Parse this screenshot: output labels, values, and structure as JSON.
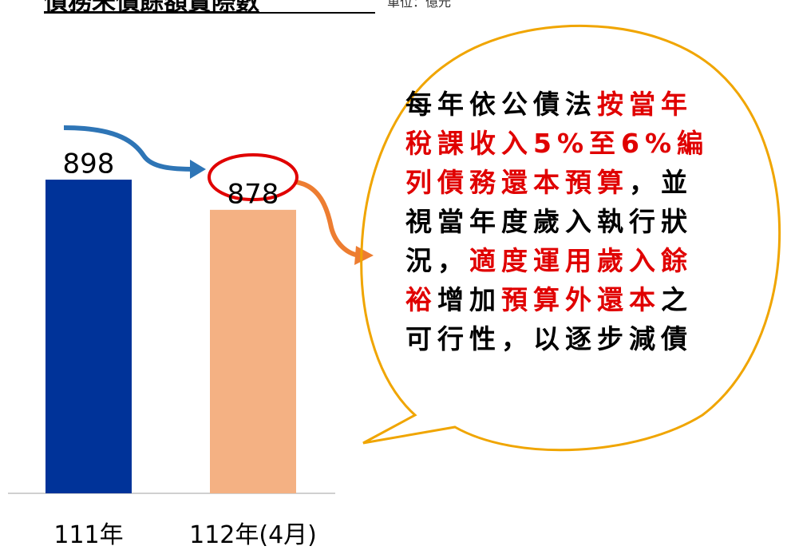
{
  "chart_data": {
    "type": "bar",
    "title": "債務未償餘額實際數",
    "subtitle": "單位：億元",
    "categories": [
      "111年",
      "112年(4月)"
    ],
    "values": [
      898,
      878
    ],
    "colors": [
      "#003399",
      "#f4b183"
    ],
    "ylim": [
      690,
      920
    ]
  },
  "bubble": {
    "lines": [
      [
        {
          "text": "每年依公債法",
          "highlight": false
        },
        {
          "text": "按當年",
          "highlight": true
        }
      ],
      [
        {
          "text": "稅課收入5%至6%編",
          "highlight": true
        }
      ],
      [
        {
          "text": "列債務還本預算",
          "highlight": true
        },
        {
          "text": "，並",
          "highlight": false
        }
      ],
      [
        {
          "text": "視當年度歲入執行狀",
          "highlight": false
        }
      ],
      [
        {
          "text": "況，",
          "highlight": false
        },
        {
          "text": "適度運用歲入餘",
          "highlight": true
        }
      ],
      [
        {
          "text": "裕",
          "highlight": true
        },
        {
          "text": "增加",
          "highlight": false
        },
        {
          "text": "預算外還本",
          "highlight": true
        },
        {
          "text": "之",
          "highlight": false
        }
      ],
      [
        {
          "text": "可行性，以逐步減債",
          "highlight": false
        }
      ]
    ]
  }
}
